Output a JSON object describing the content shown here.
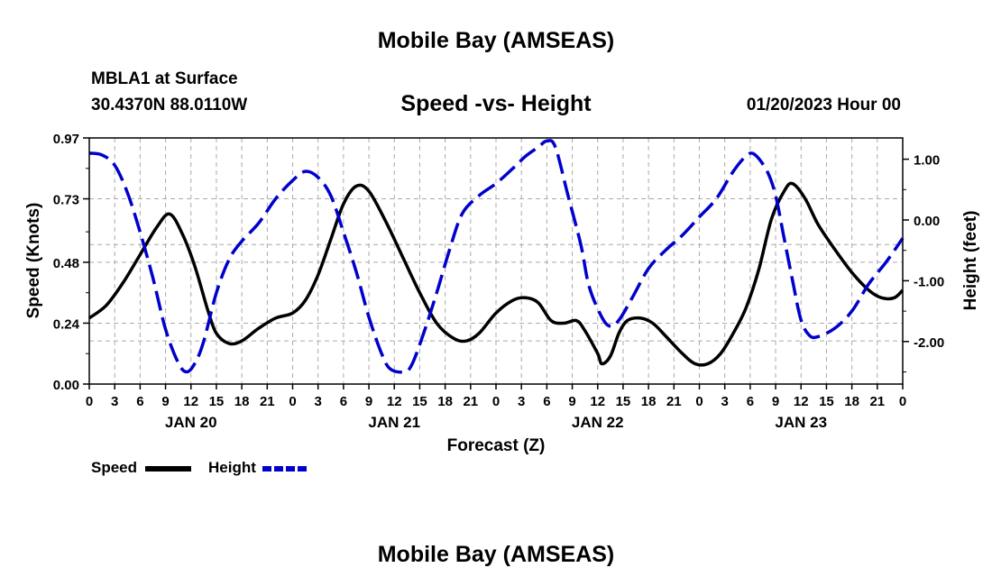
{
  "header": {
    "title": "Mobile Bay (AMSEAS)",
    "station": "MBLA1 at Surface",
    "coords": "30.4370N  88.0110W",
    "chart_title": "Speed -vs- Height",
    "datetime": "01/20/2023 Hour 00"
  },
  "footer": {
    "title": "Mobile Bay (AMSEAS)"
  },
  "legend": {
    "speed_label": "Speed",
    "height_label": "Height"
  },
  "colors": {
    "speed": "#000000",
    "height": "#0000cc",
    "grid": "#aaaaaa"
  },
  "chart_data": {
    "type": "line",
    "title": "Speed -vs- Height",
    "xlabel": "Forecast (Z)",
    "ylabel_left": "Speed (Knots)",
    "ylabel_right": "Height (feet)",
    "xlim": [
      0,
      96
    ],
    "ylim_left": [
      0,
      0.97
    ],
    "ylim_right": [
      -2.7,
      1.35
    ],
    "y_ticks_left": [
      "0.00",
      "0.24",
      "0.48",
      "0.73",
      "0.97"
    ],
    "y_tick_values_left": [
      0,
      0.24,
      0.48,
      0.73,
      0.97
    ],
    "y_ticks_right": [
      "1.00",
      "0.00",
      "-1.00",
      "-2.00"
    ],
    "y_tick_values_right": [
      1,
      0,
      -1,
      -2
    ],
    "x_tick_labels": [
      "0",
      "3",
      "6",
      "9",
      "12",
      "15",
      "18",
      "21",
      "0",
      "3",
      "6",
      "9",
      "12",
      "15",
      "18",
      "21",
      "0",
      "3",
      "6",
      "9",
      "12",
      "15",
      "18",
      "21",
      "0",
      "3",
      "6",
      "9",
      "12",
      "15",
      "18",
      "21",
      "0"
    ],
    "day_labels": [
      {
        "label": "JAN 20",
        "hour": 12
      },
      {
        "label": "JAN 21",
        "hour": 36
      },
      {
        "label": "JAN 22",
        "hour": 60
      },
      {
        "label": "JAN 23",
        "hour": 84
      }
    ],
    "grid": true,
    "series": [
      {
        "name": "Speed",
        "axis": "left",
        "style": "solid",
        "points": [
          [
            0,
            0.26
          ],
          [
            2,
            0.31
          ],
          [
            4,
            0.4
          ],
          [
            6,
            0.51
          ],
          [
            8,
            0.62
          ],
          [
            9.5,
            0.67
          ],
          [
            11,
            0.59
          ],
          [
            12.5,
            0.46
          ],
          [
            14,
            0.29
          ],
          [
            15,
            0.2
          ],
          [
            16.5,
            0.16
          ],
          [
            18,
            0.17
          ],
          [
            20,
            0.22
          ],
          [
            22,
            0.26
          ],
          [
            24,
            0.28
          ],
          [
            25.5,
            0.33
          ],
          [
            27,
            0.43
          ],
          [
            28.5,
            0.57
          ],
          [
            30,
            0.71
          ],
          [
            31.5,
            0.78
          ],
          [
            33,
            0.76
          ],
          [
            35,
            0.64
          ],
          [
            37,
            0.5
          ],
          [
            39,
            0.36
          ],
          [
            41,
            0.24
          ],
          [
            43,
            0.18
          ],
          [
            44.5,
            0.17
          ],
          [
            46,
            0.2
          ],
          [
            48,
            0.28
          ],
          [
            50,
            0.33
          ],
          [
            51.5,
            0.34
          ],
          [
            53,
            0.32
          ],
          [
            54.5,
            0.25
          ],
          [
            56,
            0.24
          ],
          [
            57.5,
            0.25
          ],
          [
            58.5,
            0.21
          ],
          [
            60,
            0.12
          ],
          [
            60.5,
            0.08
          ],
          [
            61.5,
            0.11
          ],
          [
            62.5,
            0.2
          ],
          [
            63.5,
            0.25
          ],
          [
            65,
            0.26
          ],
          [
            66.5,
            0.24
          ],
          [
            68,
            0.19
          ],
          [
            70,
            0.12
          ],
          [
            71.5,
            0.08
          ],
          [
            73,
            0.08
          ],
          [
            74.5,
            0.12
          ],
          [
            76,
            0.2
          ],
          [
            77.5,
            0.3
          ],
          [
            79,
            0.45
          ],
          [
            80.5,
            0.65
          ],
          [
            82,
            0.76
          ],
          [
            83,
            0.79
          ],
          [
            84.5,
            0.73
          ],
          [
            86,
            0.63
          ],
          [
            88,
            0.53
          ],
          [
            90,
            0.44
          ],
          [
            92,
            0.37
          ],
          [
            93.5,
            0.34
          ],
          [
            95,
            0.34
          ],
          [
            96,
            0.37
          ]
        ]
      },
      {
        "name": "Height",
        "axis": "right",
        "style": "dashed",
        "points": [
          [
            0,
            1.1
          ],
          [
            1.5,
            1.07
          ],
          [
            3,
            0.9
          ],
          [
            4.5,
            0.45
          ],
          [
            6,
            -0.2
          ],
          [
            7.5,
            -0.95
          ],
          [
            9,
            -1.8
          ],
          [
            10.5,
            -2.35
          ],
          [
            11.5,
            -2.5
          ],
          [
            12.5,
            -2.35
          ],
          [
            13.5,
            -2.0
          ],
          [
            15,
            -1.2
          ],
          [
            16.5,
            -0.65
          ],
          [
            18,
            -0.35
          ],
          [
            20,
            -0.05
          ],
          [
            22,
            0.35
          ],
          [
            24,
            0.65
          ],
          [
            25.5,
            0.8
          ],
          [
            27,
            0.7
          ],
          [
            28.5,
            0.4
          ],
          [
            30,
            -0.2
          ],
          [
            31.5,
            -0.85
          ],
          [
            33,
            -1.6
          ],
          [
            34.5,
            -2.2
          ],
          [
            35.5,
            -2.45
          ],
          [
            37,
            -2.5
          ],
          [
            38,
            -2.4
          ],
          [
            39.5,
            -1.85
          ],
          [
            41,
            -1.2
          ],
          [
            42.5,
            -0.5
          ],
          [
            44,
            0.1
          ],
          [
            46,
            0.4
          ],
          [
            48,
            0.6
          ],
          [
            50,
            0.85
          ],
          [
            51.5,
            1.05
          ],
          [
            53,
            1.2
          ],
          [
            54,
            1.3
          ],
          [
            55,
            1.2
          ],
          [
            56.5,
            0.4
          ],
          [
            58,
            -0.4
          ],
          [
            59,
            -1.1
          ],
          [
            60.5,
            -1.6
          ],
          [
            61.5,
            -1.75
          ],
          [
            62.5,
            -1.65
          ],
          [
            64,
            -1.3
          ],
          [
            66,
            -0.8
          ],
          [
            68,
            -0.5
          ],
          [
            70,
            -0.25
          ],
          [
            72,
            0.05
          ],
          [
            74,
            0.35
          ],
          [
            76,
            0.8
          ],
          [
            77.5,
            1.05
          ],
          [
            78.5,
            1.08
          ],
          [
            80,
            0.8
          ],
          [
            81,
            0.4
          ],
          [
            82,
            -0.3
          ],
          [
            83,
            -1.0
          ],
          [
            84,
            -1.65
          ],
          [
            85,
            -1.9
          ],
          [
            86,
            -1.92
          ],
          [
            88,
            -1.78
          ],
          [
            90,
            -1.5
          ],
          [
            92,
            -1.05
          ],
          [
            94,
            -0.7
          ],
          [
            96,
            -0.3
          ]
        ]
      }
    ]
  }
}
